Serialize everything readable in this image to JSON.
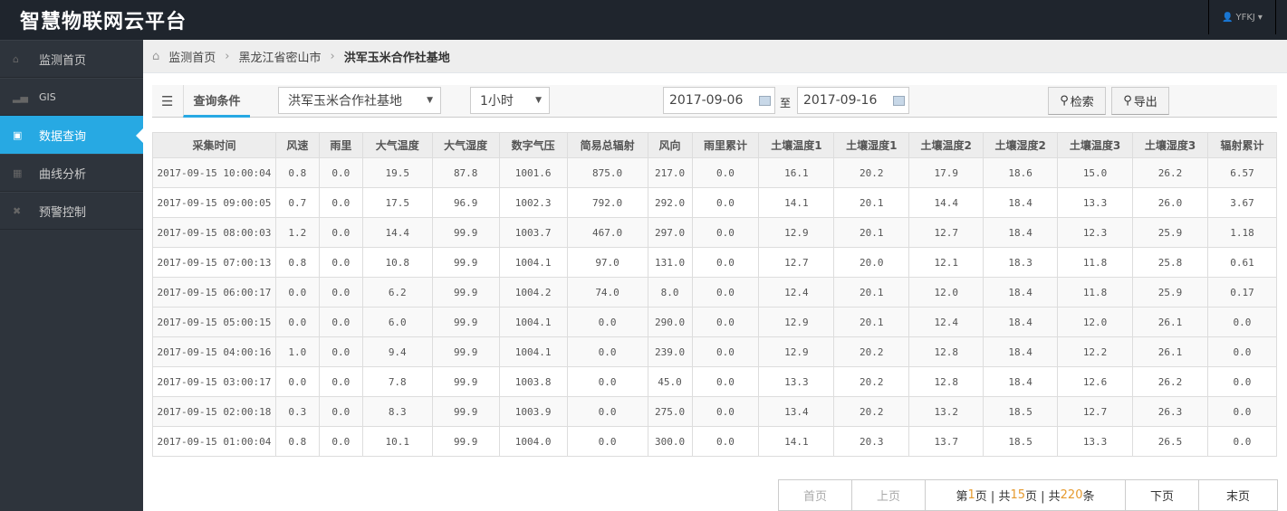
{
  "app": {
    "title": "智慧物联网云平台",
    "user": "YFKJ"
  },
  "colors": {
    "accent": "#27a9e3",
    "topbar": "#1f252d",
    "sidebar": "#2e343c"
  },
  "sidebar": {
    "items": [
      {
        "label": "监测首页",
        "icon": "home-icon"
      },
      {
        "label": "GIS",
        "icon": "signal-icon"
      },
      {
        "label": "数据查询",
        "icon": "inbox-icon",
        "active": true
      },
      {
        "label": "曲线分析",
        "icon": "grid-icon"
      },
      {
        "label": "预警控制",
        "icon": "fullscreen-icon"
      }
    ]
  },
  "breadcrumb": [
    "监测首页",
    "黑龙江省密山市",
    "洪军玉米合作社基地"
  ],
  "toolbar": {
    "tab": "查询条件",
    "site": "洪军玉米合作社基地",
    "interval": "1小时",
    "start_date": "2017-09-06",
    "to": "至",
    "end_date": "2017-09-16",
    "search": "检索",
    "export": "导出"
  },
  "table": {
    "headers": [
      "采集时间",
      "风速",
      "雨里",
      "大气温度",
      "大气湿度",
      "数字气压",
      "简易总辐射",
      "风向",
      "雨里累计",
      "土壤温度1",
      "土壤湿度1",
      "土壤温度2",
      "土壤湿度2",
      "土壤温度3",
      "土壤湿度3",
      "辐射累计"
    ],
    "rows": [
      [
        "2017-09-15 10:00:04",
        "0.8",
        "0.0",
        "19.5",
        "87.8",
        "1001.6",
        "875.0",
        "217.0",
        "0.0",
        "16.1",
        "20.2",
        "17.9",
        "18.6",
        "15.0",
        "26.2",
        "6.57"
      ],
      [
        "2017-09-15 09:00:05",
        "0.7",
        "0.0",
        "17.5",
        "96.9",
        "1002.3",
        "792.0",
        "292.0",
        "0.0",
        "14.1",
        "20.1",
        "14.4",
        "18.4",
        "13.3",
        "26.0",
        "3.67"
      ],
      [
        "2017-09-15 08:00:03",
        "1.2",
        "0.0",
        "14.4",
        "99.9",
        "1003.7",
        "467.0",
        "297.0",
        "0.0",
        "12.9",
        "20.1",
        "12.7",
        "18.4",
        "12.3",
        "25.9",
        "1.18"
      ],
      [
        "2017-09-15 07:00:13",
        "0.8",
        "0.0",
        "10.8",
        "99.9",
        "1004.1",
        "97.0",
        "131.0",
        "0.0",
        "12.7",
        "20.0",
        "12.1",
        "18.3",
        "11.8",
        "25.8",
        "0.61"
      ],
      [
        "2017-09-15 06:00:17",
        "0.0",
        "0.0",
        "6.2",
        "99.9",
        "1004.2",
        "74.0",
        "8.0",
        "0.0",
        "12.4",
        "20.1",
        "12.0",
        "18.4",
        "11.8",
        "25.9",
        "0.17"
      ],
      [
        "2017-09-15 05:00:15",
        "0.0",
        "0.0",
        "6.0",
        "99.9",
        "1004.1",
        "0.0",
        "290.0",
        "0.0",
        "12.9",
        "20.1",
        "12.4",
        "18.4",
        "12.0",
        "26.1",
        "0.0"
      ],
      [
        "2017-09-15 04:00:16",
        "1.0",
        "0.0",
        "9.4",
        "99.9",
        "1004.1",
        "0.0",
        "239.0",
        "0.0",
        "12.9",
        "20.2",
        "12.8",
        "18.4",
        "12.2",
        "26.1",
        "0.0"
      ],
      [
        "2017-09-15 03:00:17",
        "0.0",
        "0.0",
        "7.8",
        "99.9",
        "1003.8",
        "0.0",
        "45.0",
        "0.0",
        "13.3",
        "20.2",
        "12.8",
        "18.4",
        "12.6",
        "26.2",
        "0.0"
      ],
      [
        "2017-09-15 02:00:18",
        "0.3",
        "0.0",
        "8.3",
        "99.9",
        "1003.9",
        "0.0",
        "275.0",
        "0.0",
        "13.4",
        "20.2",
        "13.2",
        "18.5",
        "12.7",
        "26.3",
        "0.0"
      ],
      [
        "2017-09-15 01:00:04",
        "0.8",
        "0.0",
        "10.1",
        "99.9",
        "1004.0",
        "0.0",
        "300.0",
        "0.0",
        "14.1",
        "20.3",
        "13.7",
        "18.5",
        "13.3",
        "26.5",
        "0.0"
      ]
    ]
  },
  "pager": {
    "first": "首页",
    "prev": "上页",
    "info_a": "第",
    "page": "1",
    "info_b": "页 | 共",
    "pages": "15",
    "info_c": "页 | 共",
    "total": "220",
    "info_d": "条",
    "next": "下页",
    "last": "末页"
  }
}
